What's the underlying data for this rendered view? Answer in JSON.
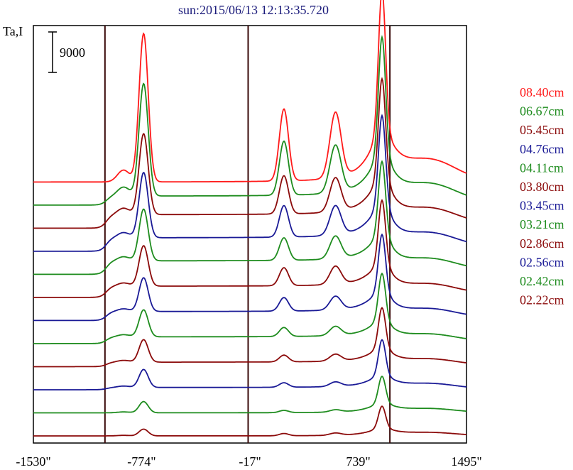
{
  "header": {
    "title": "sun:2015/06/13 12:13:35.720"
  },
  "colors": {
    "red": "#ff1a1a",
    "green": "#1e8c1e",
    "maroon": "#8b0a0a",
    "navy": "#1a1a96",
    "frame": "#000000",
    "marker": "#3a0a0a"
  },
  "chart_data": {
    "type": "line",
    "title": "sun:2015/06/13 12:13:35.720",
    "ylabel": "Ta,I",
    "xlabel": "",
    "x_ticks": [
      "-1530\"",
      "-774\"",
      "-17\"",
      "739\"",
      "1495\""
    ],
    "x_tick_values": [
      -1530,
      -774,
      -17,
      739,
      1495
    ],
    "xlim": [
      -1530,
      1495
    ],
    "vertical_markers": [
      -1030,
      -30,
      960
    ],
    "scale_bar": {
      "label": "9000",
      "value": 9000
    },
    "stacked_offset_profiles": true,
    "series": [
      {
        "name": "08.40cm",
        "color": "red",
        "baseline": 0,
        "peak1": 33000,
        "peak2": 16000,
        "peak3": 14500,
        "peak4": 42000
      },
      {
        "name": "06.67cm",
        "color": "green",
        "baseline": 2000,
        "peak1": 25000,
        "peak2": 12000,
        "peak3": 10500,
        "peak4": 35000
      },
      {
        "name": "05.45cm",
        "color": "maroon",
        "baseline": 3000,
        "peak1": 18000,
        "peak2": 8500,
        "peak3": 7500,
        "peak4": 30000
      },
      {
        "name": "04.76cm",
        "color": "navy",
        "baseline": 3000,
        "peak1": 14500,
        "peak2": 7000,
        "peak3": 6500,
        "peak4": 27000
      },
      {
        "name": "04.11cm",
        "color": "green",
        "baseline": 3000,
        "peak1": 11500,
        "peak2": 5000,
        "peak3": 5000,
        "peak4": 22000
      },
      {
        "name": "03.80cm",
        "color": "maroon",
        "baseline": 2500,
        "peak1": 9000,
        "peak2": 4000,
        "peak3": 4000,
        "peak4": 19000
      },
      {
        "name": "03.45cm",
        "color": "navy",
        "baseline": 2000,
        "peak1": 7500,
        "peak2": 3000,
        "peak3": 3000,
        "peak4": 17000
      },
      {
        "name": "03.21cm",
        "color": "green",
        "baseline": 1500,
        "peak1": 6000,
        "peak2": 2000,
        "peak3": 2000,
        "peak4": 14000
      },
      {
        "name": "02.86cm",
        "color": "maroon",
        "baseline": 1000,
        "peak1": 5000,
        "peak2": 1500,
        "peak3": 1500,
        "peak4": 12000
      },
      {
        "name": "02.56cm",
        "color": "navy",
        "baseline": 500,
        "peak1": 4000,
        "peak2": 1000,
        "peak3": 1000,
        "peak4": 10500
      },
      {
        "name": "02.42cm",
        "color": "green",
        "baseline": 0,
        "peak1": 2500,
        "peak2": 500,
        "peak3": 500,
        "peak4": 8000
      },
      {
        "name": "02.22cm",
        "color": "maroon",
        "baseline": 0,
        "peak1": 1500,
        "peak2": 500,
        "peak3": 500,
        "peak4": 6500
      }
    ]
  }
}
